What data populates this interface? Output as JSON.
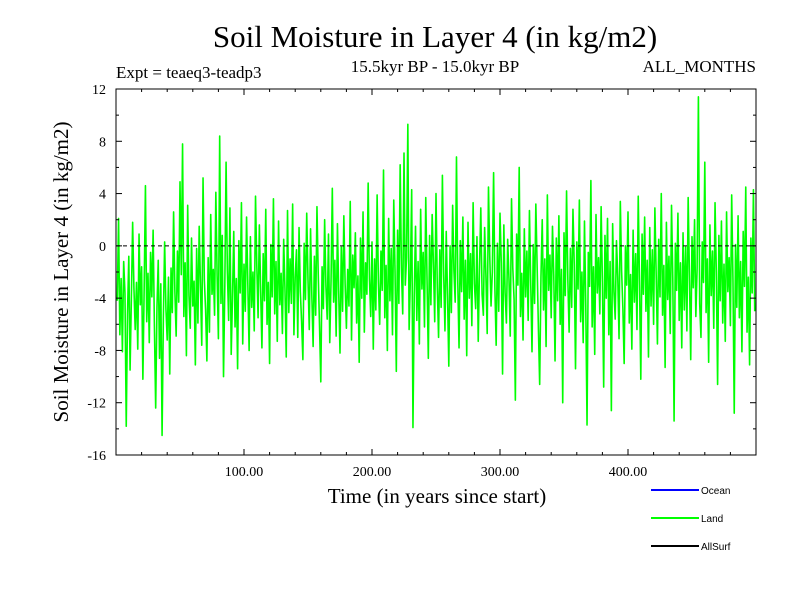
{
  "chart_data": {
    "type": "line",
    "title": "Soil Moisture in Layer 4 (in kg/m2)",
    "subtitle": "15.5kyr BP - 15.0kyr BP",
    "experiment_label": "Expt = teaeq3-teadp3",
    "months_label": "ALL_MONTHS",
    "xlabel": "Time (in years since start)",
    "ylabel": "Soil Moisture in Layer 4 (in kg/m2)",
    "xlim": [
      0,
      500
    ],
    "ylim": [
      -16,
      12
    ],
    "x_ticks": [
      100,
      200,
      300,
      400
    ],
    "x_tick_labels": [
      "100.00",
      "200.00",
      "300.00",
      "400.00"
    ],
    "y_ticks": [
      12,
      8,
      4,
      0,
      -4,
      -8,
      -12,
      -16
    ],
    "y_tick_labels": [
      "12",
      "8",
      "4",
      "0",
      "-4",
      "-8",
      "-12",
      "-16"
    ],
    "zero_line": {
      "y": 0,
      "style": "dashed"
    },
    "series_colors": {
      "Ocean": "#0000ff",
      "Land": "#00ff00",
      "AllSurf": "#000000"
    },
    "series": [
      {
        "name": "Land",
        "x_start": 1,
        "x_step": 1,
        "values": [
          -4.2,
          2.1,
          -6.8,
          -2.5,
          -8.1,
          -1.2,
          -3.6,
          -13.8,
          -5.2,
          -0.8,
          -9.5,
          -4.1,
          1.8,
          -3.2,
          -6.4,
          -2.8,
          -7.9,
          0.9,
          -4.5,
          -1.6,
          -10.2,
          -3.3,
          4.6,
          -5.8,
          -2.1,
          -7.4,
          -0.5,
          -3.9,
          1.2,
          -6.1,
          -12.4,
          -4.7,
          -1.1,
          -8.6,
          -2.9,
          -14.5,
          -5.6,
          0.3,
          -4.8,
          -7.2,
          -2.4,
          -9.8,
          -1.7,
          -5.1,
          2.6,
          -3.5,
          -6.9,
          -0.4,
          -4.3,
          4.9,
          -2.2,
          7.8,
          -5.4,
          -1.3,
          -8.4,
          3.1,
          -3.8,
          -6.3,
          0.6,
          -4.6,
          -2.7,
          -9.1,
          -0.2,
          -5.9,
          1.5,
          -3.1,
          -7.6,
          5.2,
          -2.6,
          -4.9,
          -8.8,
          -0.9,
          -6.6,
          2.4,
          -3.7,
          -1.8,
          -5.3,
          4.1,
          -2.3,
          -7.1,
          8.4,
          -4.4,
          0.8,
          -10.0,
          -3.2,
          6.4,
          -1.9,
          -5.7,
          2.9,
          -8.3,
          -4.0,
          1.1,
          -6.2,
          -2.5,
          -9.4,
          0.4,
          -3.6,
          3.3,
          -7.5,
          -1.4,
          -5.0,
          2.2,
          -3.0,
          -8.0,
          0.7,
          -4.7,
          -2.0,
          -6.5,
          3.8,
          -1.5,
          -5.5,
          1.6,
          -3.4,
          -7.8,
          -0.6,
          -4.2,
          2.8,
          -6.0,
          -2.8,
          -9.0,
          0.1,
          -3.9,
          3.6,
          -5.2,
          -1.2,
          -7.3,
          1.9,
          -4.5,
          -2.1,
          -6.7,
          0.5,
          -3.3,
          -8.5,
          2.7,
          -5.1,
          -1.0,
          -4.4,
          3.2,
          -6.8,
          -2.4,
          -0.3,
          -7.0,
          1.4,
          -3.5,
          -5.8,
          -8.7,
          0.2,
          -4.1,
          2.5,
          -2.6,
          -6.4,
          1.3,
          -3.8,
          -7.7,
          -0.8,
          -5.3,
          3.0,
          -2.2,
          -6.1,
          -10.4,
          -1.6,
          -4.8,
          2.0,
          -3.1,
          -5.6,
          0.9,
          -7.4,
          -2.7,
          4.4,
          -4.3,
          -1.1,
          -6.9,
          1.7,
          -3.6,
          -8.2,
          -0.1,
          -5.0,
          2.3,
          -2.9,
          -6.3,
          -1.8,
          -4.6,
          3.4,
          -7.2,
          -0.7,
          -3.2,
          1.0,
          -5.9,
          -2.3,
          -8.9,
          0.6,
          -4.0,
          2.6,
          -6.6,
          -1.3,
          -3.7,
          4.8,
          -2.5,
          -5.4,
          0.3,
          -7.9,
          -1.0,
          -4.9,
          3.9,
          -2.8,
          -6.0,
          -0.4,
          -3.4,
          5.8,
          -5.5,
          -1.5,
          -8.0,
          2.1,
          -4.2,
          -0.2,
          -6.8,
          3.5,
          -2.0,
          -9.6,
          1.2,
          -4.4,
          6.2,
          -1.7,
          -5.2,
          7.1,
          -3.0,
          -0.9,
          9.3,
          -6.4,
          -2.4,
          4.3,
          -13.9,
          -3.9,
          1.5,
          -5.7,
          -1.2,
          -7.5,
          2.8,
          -3.3,
          -0.5,
          -6.2,
          3.7,
          -2.6,
          -8.6,
          0.8,
          -4.5,
          2.4,
          -1.4,
          -5.8,
          4.0,
          -3.1,
          -7.0,
          -0.3,
          -4.7,
          5.4,
          -2.2,
          -6.5,
          1.1,
          -3.8,
          -9.2,
          0.0,
          -5.1,
          3.1,
          -1.9,
          -4.3,
          6.8,
          -2.7,
          -7.8,
          0.4,
          -3.5,
          2.2,
          -5.6,
          -1.1,
          -8.4,
          1.8,
          -4.0,
          -0.6,
          -6.1,
          3.3,
          -2.9,
          -4.8,
          0.7,
          -7.3,
          -1.6,
          2.9,
          -3.7,
          -5.3,
          1.4,
          -2.3,
          -6.7,
          4.5,
          -0.8,
          -4.6,
          -2.0,
          5.6,
          -3.2,
          -7.6,
          0.2,
          -5.0,
          2.5,
          -1.3,
          -9.8,
          1.6,
          -3.6,
          -5.9,
          0.5,
          -2.5,
          -6.9,
          3.6,
          -1.7,
          -4.1,
          -11.8,
          0.9,
          -3.0,
          6.0,
          -5.4,
          -2.1,
          -7.2,
          1.3,
          -3.9,
          -0.4,
          -5.7,
          2.7,
          -2.8,
          -8.1,
          0.1,
          -4.4,
          3.2,
          -1.5,
          -6.3,
          -10.6,
          -2.4,
          2.0,
          -4.9,
          -1.0,
          -7.7,
          3.9,
          -3.4,
          -0.7,
          -5.5,
          1.5,
          -2.2,
          -8.8,
          0.6,
          -4.2,
          2.3,
          -6.0,
          -1.8,
          -12.0,
          1.0,
          -3.8,
          4.2,
          -2.6,
          -6.6,
          -0.2,
          -4.7,
          2.8,
          -1.4,
          -9.4,
          0.3,
          -3.3,
          3.5,
          -5.8,
          -2.0,
          -7.4,
          1.9,
          -4.5,
          -13.7,
          -0.5,
          -3.1,
          5.0,
          -6.2,
          -1.6,
          -8.3,
          2.4,
          -3.6,
          -0.9,
          -5.2,
          3.0,
          -2.7,
          -10.8,
          0.8,
          -4.0,
          2.1,
          -6.8,
          -1.2,
          -12.6,
          1.7,
          -3.5,
          -5.6,
          0.4,
          -2.4,
          -7.1,
          3.4,
          -1.9,
          -4.8,
          -9.0,
          0.0,
          -3.0,
          2.6,
          -5.9,
          -2.2,
          -7.9,
          1.2,
          -4.3,
          -0.6,
          -6.4,
          3.8,
          -2.9,
          -10.2,
          0.9,
          -3.7,
          2.2,
          -5.0,
          -1.1,
          -8.5,
          1.4,
          -4.6,
          -0.3,
          -6.0,
          2.9,
          -2.1,
          -7.5,
          0.5,
          -3.9,
          4.0,
          -5.3,
          -1.5,
          -9.3,
          1.8,
          -4.1,
          -0.8,
          -6.7,
          3.1,
          -2.5,
          -13.4,
          0.2,
          -3.4,
          2.5,
          -5.7,
          -1.3,
          -7.8,
          1.0,
          -4.9,
          -0.1,
          -6.5,
          3.7,
          -2.3,
          -8.7,
          0.7,
          -3.2,
          2.0,
          -5.4,
          -1.7,
          11.4,
          -4.4,
          -7.0,
          0.3,
          -2.8,
          6.4,
          -5.1,
          -1.0,
          -8.9,
          1.6,
          -3.8,
          -0.4,
          -6.3,
          3.3,
          -2.0,
          -10.6,
          0.8,
          -4.2,
          1.9,
          -5.9,
          -1.4,
          -7.3,
          2.6,
          -3.5,
          -0.9,
          -6.1,
          3.9,
          -2.6,
          -12.8,
          0.1,
          -4.7,
          2.3,
          -5.5,
          -1.2,
          -8.1,
          1.1,
          -3.1,
          4.5,
          -6.6,
          -2.4,
          -9.1,
          0.6,
          -3.6,
          4.3,
          -5.0
        ]
      }
    ],
    "legend": {
      "placement": "bottom-right",
      "entries": [
        "Ocean",
        "Land",
        "AllSurf"
      ]
    }
  }
}
